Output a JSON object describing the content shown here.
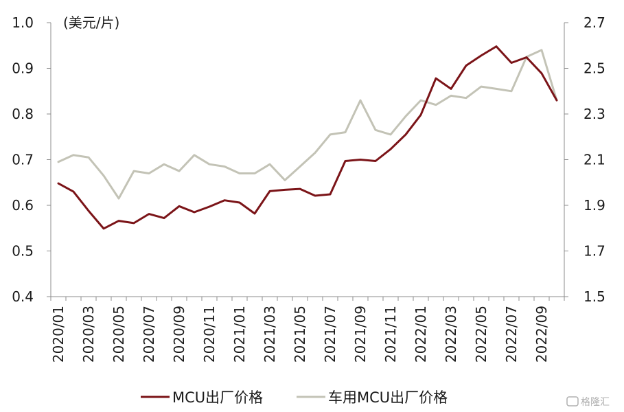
{
  "chart_data": {
    "type": "line",
    "unit_label": "(美元/片)",
    "x": [
      "2020/01",
      "2020/02",
      "2020/03",
      "2020/04",
      "2020/05",
      "2020/06",
      "2020/07",
      "2020/08",
      "2020/09",
      "2020/10",
      "2020/11",
      "2020/12",
      "2021/01",
      "2021/02",
      "2021/03",
      "2021/04",
      "2021/05",
      "2021/06",
      "2021/07",
      "2021/08",
      "2021/09",
      "2021/10",
      "2021/11",
      "2021/12",
      "2022/01",
      "2022/02",
      "2022/03",
      "2022/04",
      "2022/05",
      "2022/06",
      "2022/07",
      "2022/08",
      "2022/09",
      "2022/10"
    ],
    "x_tick_labels": [
      "2020/01",
      "2020/03",
      "2020/05",
      "2020/07",
      "2020/09",
      "2020/11",
      "2021/01",
      "2021/03",
      "2021/05",
      "2021/07",
      "2021/09",
      "2021/11",
      "2022/01",
      "2022/03",
      "2022/05",
      "2022/07",
      "2022/09"
    ],
    "y_left": {
      "ylim": [
        0.4,
        1.0
      ],
      "ticks": [
        "0.4",
        "0.5",
        "0.6",
        "0.7",
        "0.8",
        "0.9",
        "1.0"
      ]
    },
    "y_right": {
      "ylim": [
        1.5,
        2.7
      ],
      "ticks": [
        "1.5",
        "1.7",
        "1.9",
        "2.1",
        "2.3",
        "2.5",
        "2.7"
      ]
    },
    "series": [
      {
        "name": "MCU出厂价格",
        "axis": "left",
        "color": "#7b1418",
        "values": [
          0.648,
          0.63,
          0.588,
          0.549,
          0.566,
          0.561,
          0.581,
          0.572,
          0.598,
          0.585,
          0.597,
          0.611,
          0.606,
          0.582,
          0.631,
          0.634,
          0.636,
          0.621,
          0.624,
          0.697,
          0.7,
          0.697,
          0.723,
          0.755,
          0.798,
          0.878,
          0.855,
          0.906,
          0.928,
          0.948,
          0.912,
          0.924,
          0.889,
          0.83
        ]
      },
      {
        "name": "车用MCU出厂价格",
        "axis": "right",
        "color": "#c3c3b6",
        "values": [
          2.09,
          2.12,
          2.11,
          2.03,
          1.93,
          2.05,
          2.04,
          2.08,
          2.05,
          2.12,
          2.08,
          2.07,
          2.04,
          2.04,
          2.08,
          2.01,
          2.07,
          2.13,
          2.21,
          2.22,
          2.36,
          2.23,
          2.21,
          2.29,
          2.36,
          2.34,
          2.38,
          2.37,
          2.42,
          2.41,
          2.4,
          2.55,
          2.58,
          2.36
        ]
      }
    ],
    "grid": false,
    "legend_position": "bottom"
  },
  "watermark": "格隆汇"
}
